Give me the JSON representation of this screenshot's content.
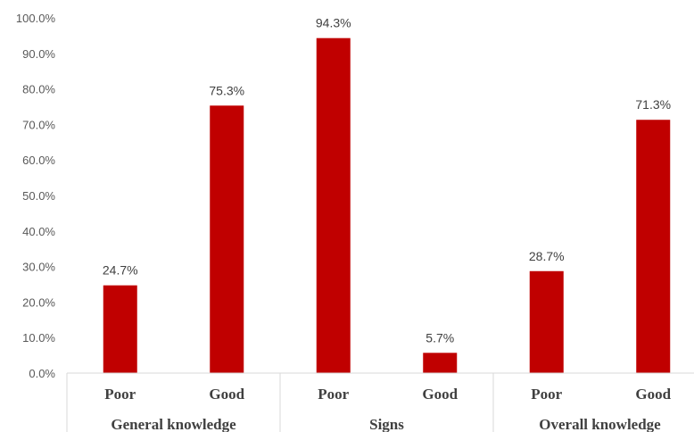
{
  "chart_data": {
    "type": "bar",
    "categories": [
      {
        "label": "Poor",
        "group": "General knowledge"
      },
      {
        "label": "Good",
        "group": "General knowledge"
      },
      {
        "label": "Poor",
        "group": "Signs"
      },
      {
        "label": "Good",
        "group": "Signs"
      },
      {
        "label": "Poor",
        "group": "Overall knowledge"
      },
      {
        "label": "Good",
        "group": "Overall knowledge"
      }
    ],
    "groups": [
      "General knowledge",
      "Signs",
      "Overall knowledge"
    ],
    "values": [
      24.7,
      75.3,
      94.3,
      5.7,
      28.7,
      71.3
    ],
    "data_labels": [
      "24.7%",
      "75.3%",
      "94.3%",
      "5.7%",
      "28.7%",
      "71.3%"
    ],
    "ylim": [
      0,
      100
    ],
    "y_ticks": [
      "0.0%",
      "10.0%",
      "20.0%",
      "30.0%",
      "40.0%",
      "50.0%",
      "60.0%",
      "70.0%",
      "80.0%",
      "90.0%",
      "100.0%"
    ],
    "bar_color": "#c00000",
    "grid": false,
    "legend": "none"
  }
}
